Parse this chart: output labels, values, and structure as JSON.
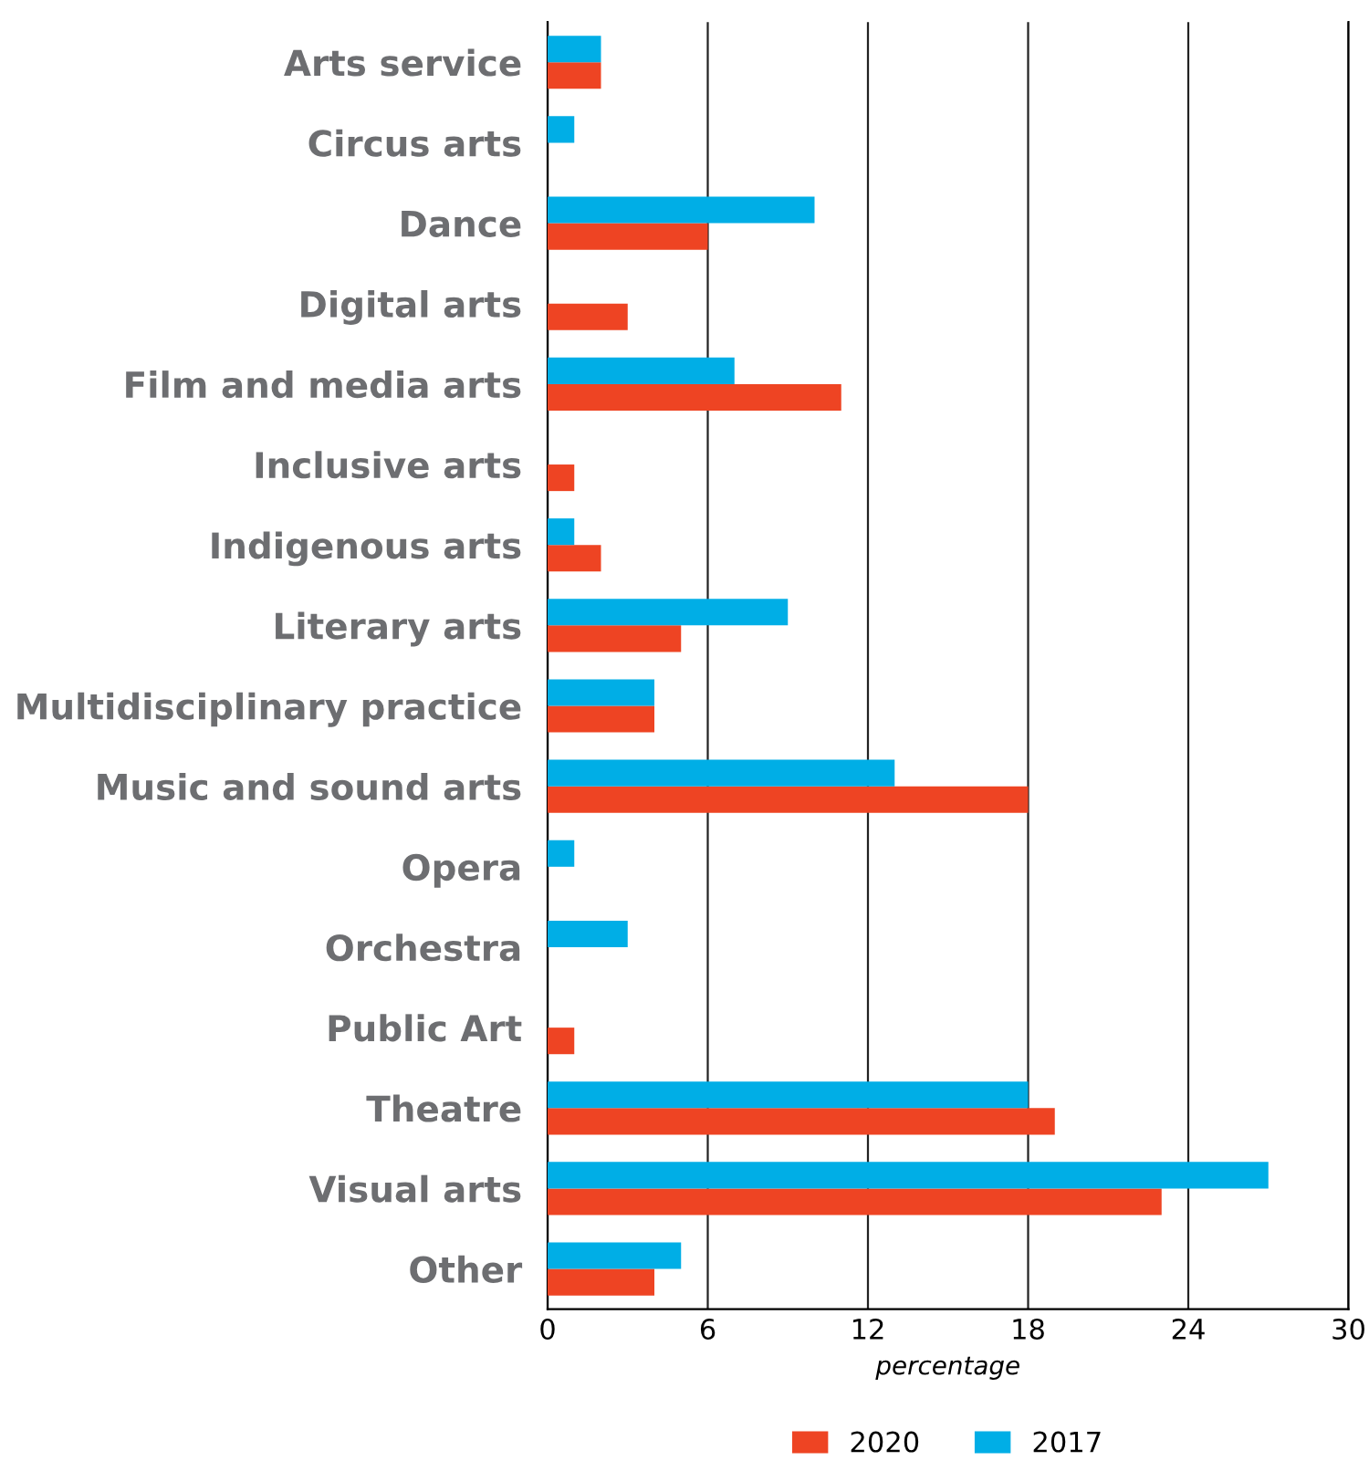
{
  "chart_data": {
    "type": "bar",
    "orientation": "horizontal",
    "xlabel": "percentage",
    "categories": [
      "Arts service",
      "Circus arts",
      "Dance",
      "Digital arts",
      "Film and media arts",
      "Inclusive arts",
      "Indigenous arts",
      "Literary arts",
      "Multidisciplinary practice",
      "Music and sound arts",
      "Opera",
      "Orchestra",
      "Public Art",
      "Theatre",
      "Visual arts",
      "Other"
    ],
    "series": [
      {
        "name": "2020",
        "color": "#ee4423",
        "values": [
          2,
          null,
          6,
          3,
          11,
          1,
          2,
          5,
          4,
          18,
          null,
          null,
          1,
          19,
          23,
          4
        ]
      },
      {
        "name": "2017",
        "color": "#00aee6",
        "values": [
          2,
          1,
          10,
          null,
          7,
          null,
          1,
          9,
          4,
          13,
          1,
          3,
          null,
          18,
          27,
          5
        ]
      }
    ],
    "xlim": [
      0,
      30
    ],
    "xticks": [
      0,
      6,
      12,
      18,
      24,
      30
    ],
    "grid": "x",
    "legend": "bottom"
  }
}
